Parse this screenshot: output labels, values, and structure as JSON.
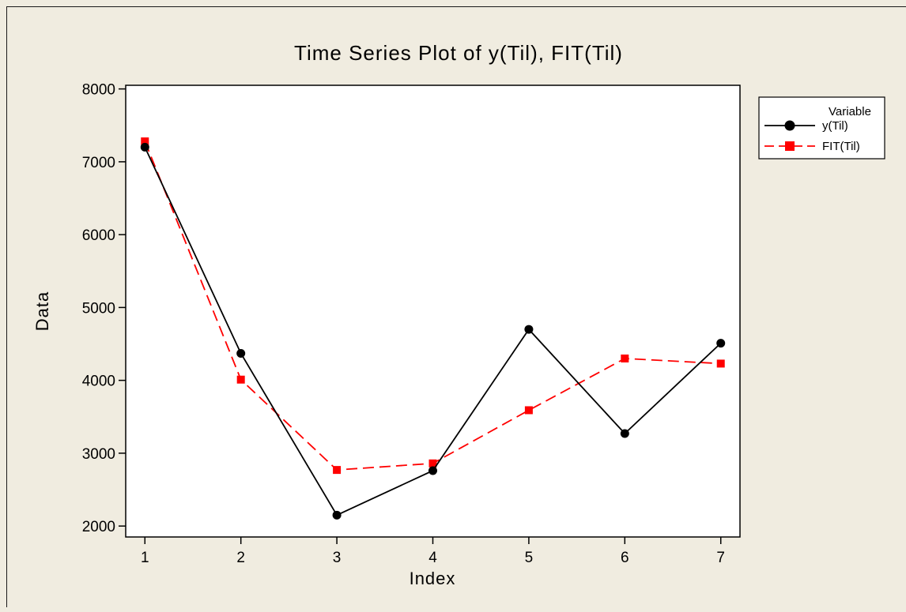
{
  "chart_data": {
    "type": "line",
    "title": "Time Series Plot of y(Til), FIT(Til)",
    "xlabel": "Index",
    "ylabel": "Data",
    "x": [
      1,
      2,
      3,
      4,
      5,
      6,
      7
    ],
    "xlim": [
      0.8,
      7.2
    ],
    "ylim": [
      1850,
      8050
    ],
    "yticks": [
      2000,
      3000,
      4000,
      5000,
      6000,
      7000,
      8000
    ],
    "xticks": [
      1,
      2,
      3,
      4,
      5,
      6,
      7
    ],
    "grid": false,
    "legend_position": "right",
    "legend_title": "Variable",
    "series": [
      {
        "name": "y(Til)",
        "values": [
          7200,
          4370,
          2150,
          2760,
          4700,
          3270,
          4510
        ],
        "color": "#000000",
        "marker": "circle",
        "line": "solid"
      },
      {
        "name": "FIT(Til)",
        "values": [
          7280,
          4010,
          2770,
          2860,
          3590,
          4300,
          4230
        ],
        "color": "#ff0000",
        "marker": "square",
        "line": "dashed"
      }
    ],
    "plot_background": "#ffffff",
    "page_background": "#f0ece0"
  }
}
